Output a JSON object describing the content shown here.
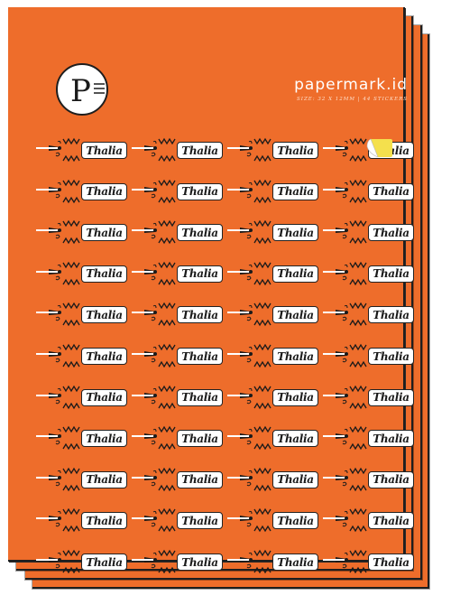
{
  "brand": {
    "name": "papermark.id",
    "specs": "SIZE: 32 X 12MM | 44 STICKERS",
    "logo_letter": "P"
  },
  "sticker": {
    "label": "Thalia",
    "rows": 11,
    "columns": 4
  },
  "colors": {
    "sheet": "#ee6d2b",
    "tag": "#ffffff",
    "ink": "#1a1a1a",
    "peel_back": "#f4e04d"
  },
  "icons": [
    "p-logo-icon",
    "lion-pattern-icon",
    "peeled-corner-icon"
  ]
}
